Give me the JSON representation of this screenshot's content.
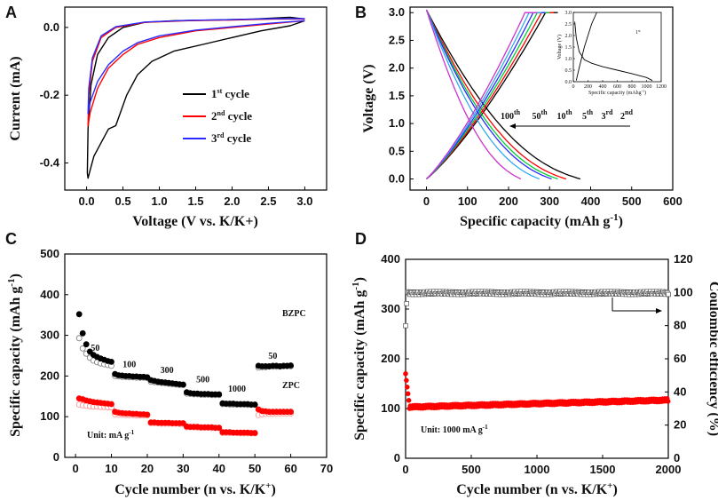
{
  "colors": {
    "black": "#000000",
    "red": "#ff0000",
    "blue": "#2a2aff",
    "green": "#00cc33",
    "magenta": "#cc33cc",
    "cyan": "#33aaee",
    "gray": "#777777"
  },
  "chart_data": [
    {
      "panel": "A",
      "type": "line",
      "xlabel": "Voltage (V vs. K/K+)",
      "ylabel": "Current (mA)",
      "xlim": [
        -0.3,
        3.3
      ],
      "ylim": [
        -0.48,
        0.06
      ],
      "xticks": [
        "0.0",
        "0.5",
        "1.0",
        "1.5",
        "2.0",
        "2.5",
        "3.0"
      ],
      "yticks": [
        "0.0",
        "-0.2",
        "-0.4"
      ],
      "legend": [
        {
          "base": "1",
          "sup": "st",
          "rest": " cycle",
          "color": "#000000"
        },
        {
          "base": "2",
          "sup": "nd",
          "rest": " cycle",
          "color": "#ff0000"
        },
        {
          "base": "3",
          "sup": "rd",
          "rest": " cycle",
          "color": "#2a2aff"
        }
      ],
      "series": [
        {
          "name": "1st cycle",
          "color": "#000000",
          "x": [
            3.0,
            2.8,
            2.4,
            2.0,
            1.6,
            1.2,
            0.9,
            0.7,
            0.55,
            0.45,
            0.4,
            0.3,
            0.2,
            0.1,
            0.05,
            0.02,
            0.01,
            0.02,
            0.06,
            0.15,
            0.3,
            0.5,
            0.8,
            1.2,
            1.8,
            2.3,
            2.6,
            2.8,
            3.0
          ],
          "y": [
            0.02,
            0.005,
            -0.01,
            -0.03,
            -0.05,
            -0.07,
            -0.1,
            -0.14,
            -0.2,
            -0.26,
            -0.29,
            -0.3,
            -0.34,
            -0.38,
            -0.42,
            -0.445,
            -0.43,
            -0.3,
            -0.17,
            -0.08,
            -0.03,
            0.0,
            0.015,
            0.02,
            0.022,
            0.025,
            0.028,
            0.03,
            0.025
          ]
        },
        {
          "name": "2nd cycle",
          "color": "#ff0000",
          "x": [
            3.0,
            2.5,
            2.0,
            1.5,
            1.0,
            0.7,
            0.5,
            0.3,
            0.15,
            0.05,
            0.02,
            0.03,
            0.08,
            0.2,
            0.4,
            0.8,
            1.4,
            2.0,
            2.6,
            3.0
          ],
          "y": [
            0.02,
            0.01,
            0.0,
            -0.01,
            -0.03,
            -0.05,
            -0.08,
            -0.12,
            -0.18,
            -0.25,
            -0.29,
            -0.2,
            -0.1,
            -0.03,
            0.0,
            0.015,
            0.02,
            0.022,
            0.025,
            0.025
          ]
        },
        {
          "name": "3rd cycle",
          "color": "#2a2aff",
          "x": [
            3.0,
            2.5,
            2.0,
            1.5,
            1.0,
            0.7,
            0.5,
            0.3,
            0.15,
            0.05,
            0.02,
            0.03,
            0.08,
            0.2,
            0.4,
            0.8,
            1.4,
            2.0,
            2.6,
            3.0
          ],
          "y": [
            0.02,
            0.012,
            0.002,
            -0.008,
            -0.025,
            -0.045,
            -0.07,
            -0.11,
            -0.16,
            -0.22,
            -0.255,
            -0.18,
            -0.09,
            -0.025,
            0.002,
            0.016,
            0.021,
            0.023,
            0.026,
            0.026
          ]
        }
      ]
    },
    {
      "panel": "B",
      "type": "line",
      "xlabel": "Specific capacity (mAh g",
      "xlabel_sup": "-1",
      "xlabel_tail": ")",
      "ylabel": "Voltage (V)",
      "xlim": [
        -40,
        600
      ],
      "ylim": [
        -0.2,
        3.1
      ],
      "xticks": [
        "0",
        "100",
        "200",
        "300",
        "400",
        "500",
        "600"
      ],
      "yticks": [
        "0.0",
        "0.5",
        "1.0",
        "1.5",
        "2.0",
        "2.5",
        "3.0"
      ],
      "cycle_labels": [
        {
          "base": "100",
          "sup": "th"
        },
        {
          "base": "50",
          "sup": "th"
        },
        {
          "base": "10",
          "sup": "th"
        },
        {
          "base": "5",
          "sup": "th"
        },
        {
          "base": "3",
          "sup": "rd"
        },
        {
          "base": "2",
          "sup": "nd"
        }
      ],
      "discharge_end_capacity": [
        375,
        340,
        320,
        305,
        275,
        230
      ],
      "charge_end_capacity": [
        290,
        280,
        270,
        260,
        250,
        240
      ],
      "curve_colors": [
        "#000000",
        "#ff0000",
        "#00cc33",
        "#2a2aff",
        "#33aaee",
        "#cc33cc"
      ],
      "inset": {
        "xlabel": "Specific capacity (mAhg",
        "xlabel_sup": "-1",
        "xlabel_tail": ")",
        "ylabel": "Voltage (V)",
        "label_base": "1",
        "label_sup": "st",
        "xticks": [
          "0",
          "200",
          "400",
          "600",
          "800",
          "1000",
          "1200"
        ],
        "yticks": [
          "0.0",
          "0.5",
          "1.0",
          "1.5",
          "2.0",
          "2.5",
          "3.0"
        ],
        "xlim": [
          0,
          1200
        ],
        "ylim": [
          0,
          3.0
        ],
        "discharge_x": [
          20,
          40,
          80,
          150,
          250,
          400,
          600,
          800,
          1000,
          1080
        ],
        "discharge_y": [
          2.6,
          1.9,
          1.3,
          0.95,
          0.8,
          0.65,
          0.5,
          0.35,
          0.18,
          0.05
        ],
        "charge_x": [
          40,
          80,
          150,
          250,
          320
        ],
        "charge_y": [
          0.05,
          0.6,
          1.5,
          2.5,
          3.0
        ]
      }
    },
    {
      "panel": "C",
      "type": "scatter",
      "xlabel": "Cycle number (n vs. K/K",
      "xlabel_sup": "+",
      "xlabel_tail": ")",
      "ylabel": "Specific capacity (mAh g",
      "ylabel_sup": "-1",
      "ylabel_tail": ")",
      "xlim": [
        -3,
        70
      ],
      "ylim": [
        0,
        500
      ],
      "xticks": [
        "0",
        "10",
        "20",
        "30",
        "40",
        "50",
        "60",
        "70"
      ],
      "yticks": [
        "0",
        "100",
        "200",
        "300",
        "400",
        "500"
      ],
      "unit_base": "Unit: mA g",
      "unit_sup": "-1",
      "rate_labels": [
        "50",
        "100",
        "300",
        "500",
        "1000",
        "50"
      ],
      "series_labels": [
        "BZPC",
        "ZPC"
      ],
      "BZPC_discharge": [
        352,
        305,
        278,
        260,
        252,
        247,
        243,
        240,
        237,
        235,
        205,
        202,
        201,
        200,
        200,
        199,
        199,
        198,
        198,
        197,
        190,
        188,
        186,
        185,
        184,
        183,
        182,
        181,
        180,
        179,
        160,
        158,
        157,
        157,
        156,
        156,
        156,
        155,
        155,
        155,
        133,
        132,
        132,
        132,
        131,
        131,
        131,
        131,
        130,
        130,
        225,
        224,
        224,
        224,
        225,
        225,
        224,
        225,
        225,
        226
      ],
      "BZPC_charge": [
        293,
        268,
        255,
        245,
        238,
        234,
        231,
        229,
        227,
        225,
        200,
        199,
        198,
        198,
        197,
        197,
        196,
        196,
        196,
        195,
        186,
        185,
        184,
        183,
        182,
        181,
        180,
        179,
        178,
        178,
        157,
        156,
        155,
        155,
        154,
        154,
        154,
        153,
        153,
        153,
        131,
        131,
        130,
        130,
        130,
        130,
        130,
        129,
        129,
        129,
        221,
        222,
        222,
        223,
        223,
        223,
        223,
        224,
        224,
        224
      ],
      "ZPC_discharge": [
        145,
        143,
        140,
        138,
        136,
        135,
        134,
        133,
        132,
        131,
        112,
        110,
        109,
        108,
        108,
        107,
        107,
        106,
        106,
        105,
        86,
        86,
        85,
        85,
        85,
        85,
        84,
        84,
        84,
        84,
        76,
        75,
        75,
        75,
        74,
        74,
        74,
        74,
        73,
        73,
        62,
        62,
        62,
        61,
        61,
        61,
        61,
        61,
        60,
        60,
        118,
        114,
        113,
        112,
        112,
        112,
        112,
        112,
        112,
        112
      ],
      "ZPC_charge": [
        130,
        128,
        127,
        126,
        125,
        125,
        124,
        124,
        123,
        123,
        106,
        105,
        105,
        104,
        104,
        104,
        103,
        103,
        103,
        103,
        84,
        84,
        84,
        83,
        83,
        83,
        83,
        83,
        82,
        82,
        74,
        74,
        74,
        73,
        73,
        73,
        73,
        72,
        72,
        72,
        60,
        60,
        60,
        60,
        60,
        59,
        59,
        59,
        59,
        59,
        104,
        106,
        107,
        107,
        107,
        108,
        108,
        108,
        108,
        108
      ]
    },
    {
      "panel": "D",
      "type": "scatter",
      "xlabel": "Cycle number (n vs. K/K",
      "xlabel_sup": "+",
      "xlabel_tail": ")",
      "ylabel": "Specific capacity (mAh g",
      "ylabel_sup": "-1",
      "ylabel_tail": ")",
      "ylabel_right": "Coulombic efficiency (%)",
      "xlim": [
        0,
        2000
      ],
      "ylim": [
        0,
        400
      ],
      "ylim_right": [
        0,
        120
      ],
      "xticks": [
        "0",
        "500",
        "1000",
        "1500",
        "2000"
      ],
      "yticks": [
        "0",
        "100",
        "200",
        "300",
        "400"
      ],
      "yticks_right": [
        "0",
        "20",
        "40",
        "60",
        "80",
        "100",
        "120"
      ],
      "unit_label": "Unit: 1000 mA g",
      "unit_sup": "-1",
      "capacity_start": 170,
      "capacity_plateau": 103,
      "capacity_end": 117,
      "efficiency_start": 80,
      "efficiency_plateau": 100
    }
  ]
}
